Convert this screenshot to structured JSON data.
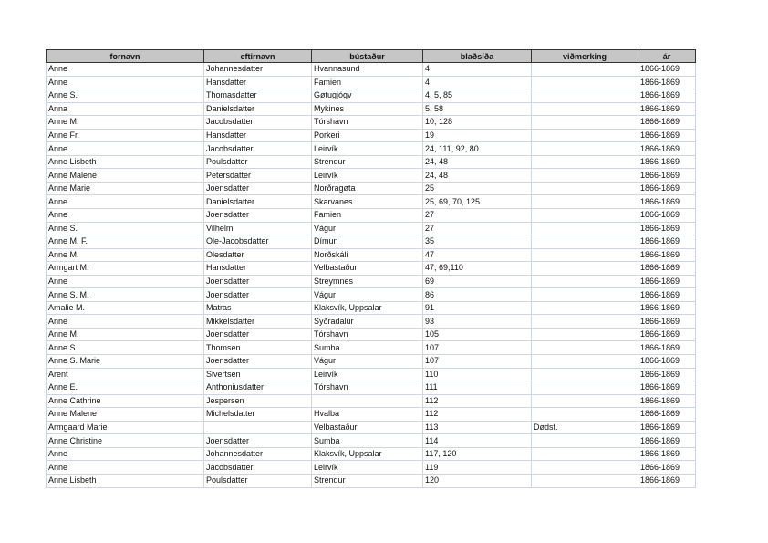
{
  "table": {
    "headers": [
      "fornavn",
      "eftirnavn",
      "bústaður",
      "blaðsíða",
      "viðmerking",
      "ár"
    ],
    "rows": [
      [
        "Anne",
        "Johannesdatter",
        "Hvannasund",
        "4",
        "",
        "1866-1869"
      ],
      [
        "Anne",
        "Hansdatter",
        "Famien",
        "4",
        "",
        "1866-1869"
      ],
      [
        "Anne S.",
        "Thomasdatter",
        "Gøtugjógv",
        "4, 5, 85",
        "",
        "1866-1869"
      ],
      [
        "Anna",
        "Danielsdatter",
        "Mykines",
        "5, 58",
        "",
        "1866-1869"
      ],
      [
        "Anne M.",
        "Jacobsdatter",
        "Tórshavn",
        "10, 128",
        "",
        "1866-1869"
      ],
      [
        "Anne Fr.",
        "Hansdatter",
        "Porkeri",
        "19",
        "",
        "1866-1869"
      ],
      [
        "Anne",
        "Jacobsdatter",
        "Leirvík",
        "24, 111, 92, 80",
        "",
        "1866-1869"
      ],
      [
        "Anne Lisbeth",
        "Poulsdatter",
        "Strendur",
        "24, 48",
        "",
        "1866-1869"
      ],
      [
        "Anne Malene",
        "Petersdatter",
        "Leirvík",
        "24, 48",
        "",
        "1866-1869"
      ],
      [
        "Anne Marie",
        "Joensdatter",
        "Norðragøta",
        "25",
        "",
        "1866-1869"
      ],
      [
        "Anne",
        "Danielsdatter",
        "Skarvanes",
        "25, 69, 70, 125",
        "",
        "1866-1869"
      ],
      [
        "Anne",
        "Joensdatter",
        "Famien",
        "27",
        "",
        "1866-1869"
      ],
      [
        "Anne S.",
        "Vilhelm",
        "Vágur",
        "27",
        "",
        "1866-1869"
      ],
      [
        "Anne M. F.",
        "Ole-Jacobsdatter",
        "Dímun",
        "35",
        "",
        "1866-1869"
      ],
      [
        "Anne M.",
        "Olesdatter",
        "Norðskáli",
        "47",
        "",
        "1866-1869"
      ],
      [
        "Armgart M.",
        "Hansdatter",
        "Velbastaður",
        "47, 69,110",
        "",
        "1866-1869"
      ],
      [
        "Anne",
        "Joensdatter",
        "Streymnes",
        "69",
        "",
        "1866-1869"
      ],
      [
        "Anne S. M.",
        "Joensdatter",
        "Vágur",
        "86",
        "",
        "1866-1869"
      ],
      [
        "Amalie M.",
        "Matras",
        "Klaksvík,  Uppsalar",
        "91",
        "",
        "1866-1869"
      ],
      [
        "Anne",
        "Mikkelsdatter",
        "Syðradalur",
        "93",
        "",
        "1866-1869"
      ],
      [
        "Anne M.",
        "Joensdatter",
        "Tórshavn",
        "105",
        "",
        "1866-1869"
      ],
      [
        "Anne S.",
        "Thomsen",
        "Sumba",
        "107",
        "",
        "1866-1869"
      ],
      [
        "Anne S. Marie",
        "Joensdatter",
        "Vágur",
        "107",
        "",
        "1866-1869"
      ],
      [
        "Arent",
        "Sivertsen",
        "Leirvík",
        "110",
        "",
        "1866-1869"
      ],
      [
        "Anne E.",
        "Anthoniusdatter",
        "Tórshavn",
        "111",
        "",
        "1866-1869"
      ],
      [
        "Anne Cathrine",
        "Jespersen",
        "",
        "112",
        "",
        "1866-1869"
      ],
      [
        "Anne Malene",
        "Michelsdatter",
        "Hvalba",
        "112",
        "",
        "1866-1869"
      ],
      [
        "Armgaard Marie",
        "",
        "Velbastaður",
        "113",
        "Dødsf.",
        "1866-1869"
      ],
      [
        "Anne Christine",
        "Joensdatter",
        "Sumba",
        "114",
        "",
        "1866-1869"
      ],
      [
        "Anne",
        "Johannesdatter",
        "Klaksvík, Uppsalar",
        "117, 120",
        "",
        "1866-1869"
      ],
      [
        "Anne",
        "Jacobsdatter",
        "Leirvík",
        "119",
        "",
        "1866-1869"
      ],
      [
        "Anne Lisbeth",
        "Poulsdatter",
        "Strendur",
        "120",
        "",
        "1866-1869"
      ]
    ]
  }
}
